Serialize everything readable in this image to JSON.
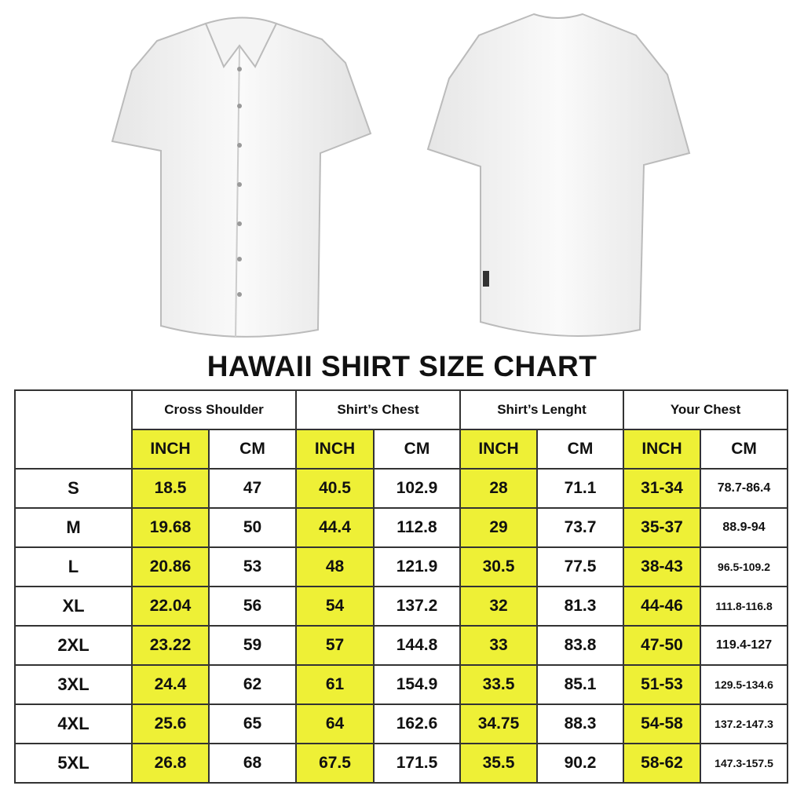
{
  "title": "HAWAII SHIRT SIZE CHART",
  "colors": {
    "inch_highlight": "#eef036",
    "border": "#333333"
  },
  "images": {
    "front": "white short-sleeve shirt front view",
    "back": "white short-sleeve shirt back view"
  },
  "groups": [
    "Cross Shoulder",
    "Shirt’s Chest",
    "Shirt’s Lenght",
    "Your Chest"
  ],
  "units": [
    "INCH",
    "CM"
  ],
  "rows": [
    {
      "size": "S",
      "values": [
        "18.5",
        "47",
        "40.5",
        "102.9",
        "28",
        "71.1",
        "31-34",
        "78.7-86.4"
      ]
    },
    {
      "size": "M",
      "values": [
        "19.68",
        "50",
        "44.4",
        "112.8",
        "29",
        "73.7",
        "35-37",
        "88.9-94"
      ]
    },
    {
      "size": "L",
      "values": [
        "20.86",
        "53",
        "48",
        "121.9",
        "30.5",
        "77.5",
        "38-43",
        "96.5-109.2"
      ]
    },
    {
      "size": "XL",
      "values": [
        "22.04",
        "56",
        "54",
        "137.2",
        "32",
        "81.3",
        "44-46",
        "111.8-116.8"
      ]
    },
    {
      "size": "2XL",
      "values": [
        "23.22",
        "59",
        "57",
        "144.8",
        "33",
        "83.8",
        "47-50",
        "119.4-127"
      ]
    },
    {
      "size": "3XL",
      "values": [
        "24.4",
        "62",
        "61",
        "154.9",
        "33.5",
        "85.1",
        "51-53",
        "129.5-134.6"
      ]
    },
    {
      "size": "4XL",
      "values": [
        "25.6",
        "65",
        "64",
        "162.6",
        "34.75",
        "88.3",
        "54-58",
        "137.2-147.3"
      ]
    },
    {
      "size": "5XL",
      "values": [
        "26.8",
        "68",
        "67.5",
        "171.5",
        "35.5",
        "90.2",
        "58-62",
        "147.3-157.5"
      ]
    }
  ]
}
